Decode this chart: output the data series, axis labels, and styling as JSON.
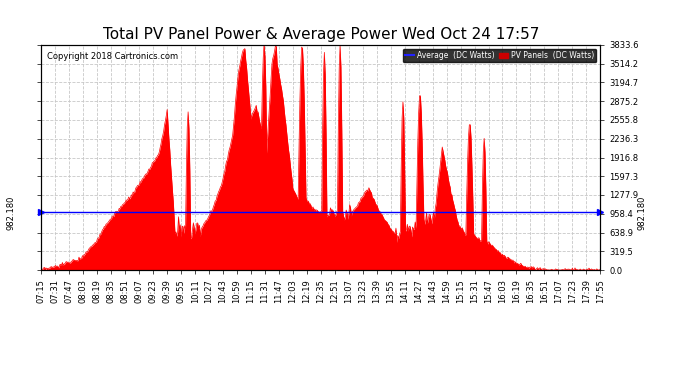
{
  "title": "Total PV Panel Power & Average Power Wed Oct 24 17:57",
  "copyright": "Copyright 2018 Cartronics.com",
  "ylabel_right_ticks": [
    0.0,
    319.5,
    638.9,
    958.4,
    1277.9,
    1597.3,
    1916.8,
    2236.3,
    2555.8,
    2875.2,
    3194.7,
    3514.2,
    3833.6
  ],
  "ymax": 3833.6,
  "ymin": 0.0,
  "average_value": 982.18,
  "average_label": "982.180",
  "avg_line_color": "#0000ff",
  "fill_color": "#ff0000",
  "background_color": "#ffffff",
  "grid_color": "#c8c8c8",
  "title_fontsize": 11,
  "copyright_fontsize": 6,
  "tick_fontsize": 6,
  "legend_avg_color": "#0000cc",
  "legend_pv_color": "#cc0000",
  "x_tick_labels": [
    "07:15",
    "07:31",
    "07:47",
    "08:03",
    "08:19",
    "08:35",
    "08:51",
    "09:07",
    "09:23",
    "09:39",
    "09:55",
    "10:11",
    "10:27",
    "10:43",
    "10:59",
    "11:15",
    "11:31",
    "11:47",
    "12:03",
    "12:19",
    "12:35",
    "12:51",
    "13:07",
    "13:23",
    "13:39",
    "13:55",
    "14:11",
    "14:27",
    "14:43",
    "14:59",
    "15:15",
    "15:31",
    "15:47",
    "16:03",
    "16:19",
    "16:35",
    "16:51",
    "17:07",
    "17:23",
    "17:39",
    "17:55"
  ]
}
